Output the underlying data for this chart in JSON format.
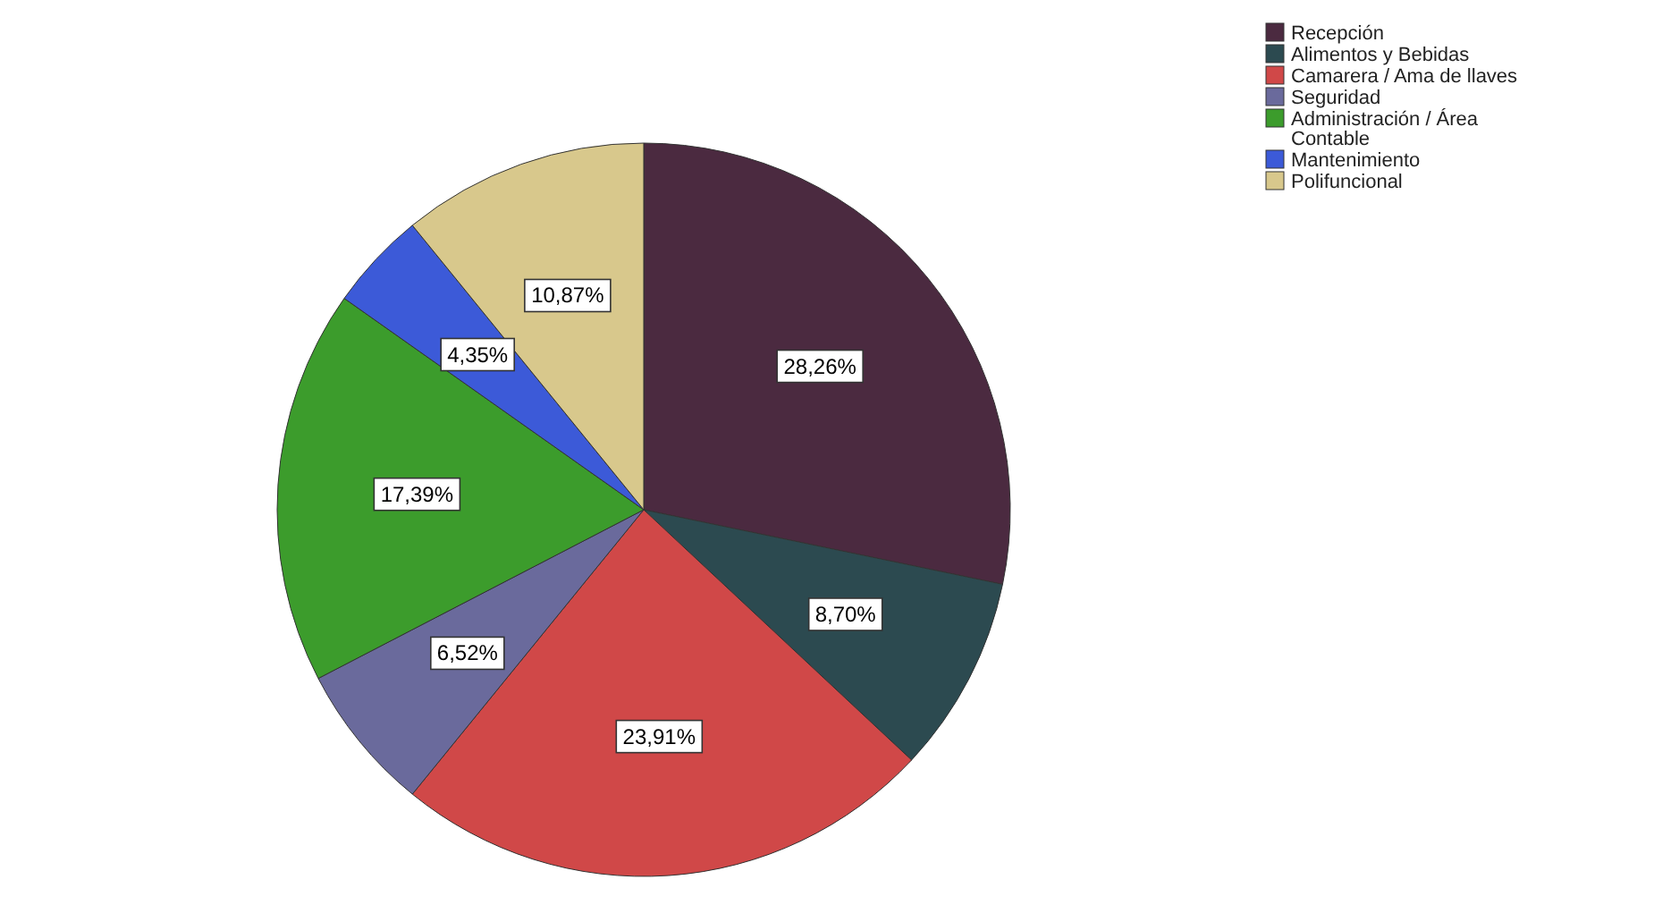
{
  "chart_data": {
    "type": "pie",
    "categories": [
      "Recepción",
      "Alimentos y Bebidas",
      "Camarera / Ama de llaves",
      "Seguridad",
      "Administración / Área Contable",
      "Mantenimiento",
      "Polifuncional"
    ],
    "values": [
      28.26,
      8.7,
      23.91,
      6.52,
      17.39,
      4.35,
      10.87
    ],
    "colors": [
      "#4b2a40",
      "#2c4a50",
      "#d04848",
      "#6a6a9c",
      "#3c9c2c",
      "#3c5ad8",
      "#d8c88c"
    ],
    "value_labels": [
      "28,26%",
      "8,70%",
      "23,91%",
      "6,52%",
      "17,39%",
      "4,35%",
      "10,87%"
    ],
    "legend": "top right"
  }
}
